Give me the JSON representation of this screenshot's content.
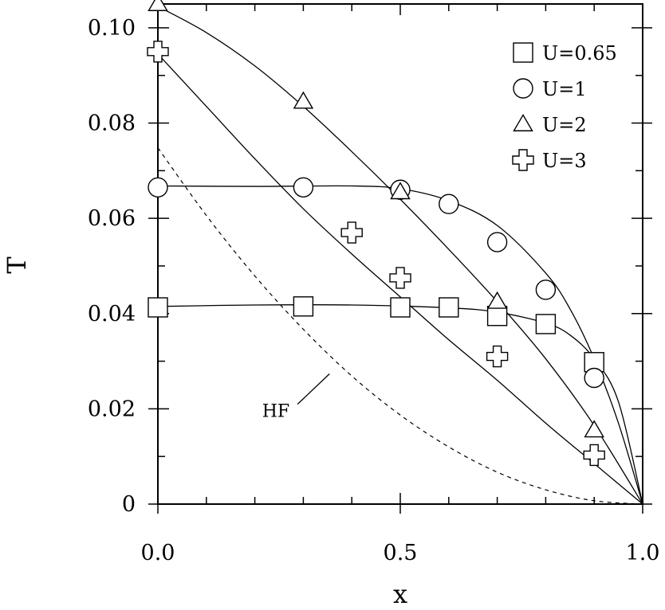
{
  "chart_data": {
    "type": "scatter",
    "title": "",
    "xlabel": "x",
    "ylabel": "T",
    "xlim": [
      0,
      1
    ],
    "ylim": [
      0,
      0.105
    ],
    "x_ticks": [
      "0.0",
      "0.5",
      "1.0"
    ],
    "y_ticks": [
      "0",
      "0.02",
      "0.04",
      "0.06",
      "0.08",
      "0.10"
    ],
    "legend_position": "top-right",
    "grid": false,
    "series": [
      {
        "name": "U=0.65",
        "marker": "square",
        "points": [
          [
            0.0,
            0.0413
          ],
          [
            0.3,
            0.0415
          ],
          [
            0.5,
            0.0413
          ],
          [
            0.6,
            0.0413
          ],
          [
            0.7,
            0.0395
          ],
          [
            0.8,
            0.0378
          ],
          [
            0.9,
            0.0298
          ]
        ],
        "curve": [
          [
            0.0,
            0.0415
          ],
          [
            0.2,
            0.0418
          ],
          [
            0.4,
            0.0418
          ],
          [
            0.6,
            0.0412
          ],
          [
            0.7,
            0.0403
          ],
          [
            0.8,
            0.038
          ],
          [
            0.85,
            0.0355
          ],
          [
            0.9,
            0.0305
          ],
          [
            0.95,
            0.0215
          ],
          [
            1.0,
            0.0
          ]
        ]
      },
      {
        "name": "U=1",
        "marker": "circle",
        "points": [
          [
            0.0,
            0.0665
          ],
          [
            0.3,
            0.0665
          ],
          [
            0.5,
            0.066
          ],
          [
            0.6,
            0.063
          ],
          [
            0.7,
            0.055
          ],
          [
            0.8,
            0.045
          ],
          [
            0.9,
            0.0265
          ]
        ],
        "curve": [
          [
            0.0,
            0.0668
          ],
          [
            0.2,
            0.0667
          ],
          [
            0.4,
            0.0668
          ],
          [
            0.5,
            0.0662
          ],
          [
            0.6,
            0.0637
          ],
          [
            0.7,
            0.0585
          ],
          [
            0.8,
            0.0485
          ],
          [
            0.85,
            0.041
          ],
          [
            0.9,
            0.0305
          ],
          [
            0.95,
            0.017
          ],
          [
            1.0,
            0.0
          ]
        ]
      },
      {
        "name": "U=2",
        "marker": "triangle",
        "points": [
          [
            0.0,
            0.105
          ],
          [
            0.3,
            0.0845
          ],
          [
            0.5,
            0.0655
          ],
          [
            0.7,
            0.0425
          ],
          [
            0.9,
            0.0155
          ]
        ],
        "curve": [
          [
            0.0,
            0.1045
          ],
          [
            0.1,
            0.099
          ],
          [
            0.2,
            0.092
          ],
          [
            0.3,
            0.0835
          ],
          [
            0.4,
            0.074
          ],
          [
            0.5,
            0.064
          ],
          [
            0.6,
            0.0535
          ],
          [
            0.7,
            0.0425
          ],
          [
            0.8,
            0.0305
          ],
          [
            0.9,
            0.0165
          ],
          [
            1.0,
            0.0
          ]
        ]
      },
      {
        "name": "U=3",
        "marker": "plus",
        "points": [
          [
            0.0,
            0.095
          ],
          [
            0.4,
            0.057
          ],
          [
            0.5,
            0.0475
          ],
          [
            0.7,
            0.031
          ],
          [
            0.9,
            0.0103
          ]
        ],
        "curve": [
          [
            0.0,
            0.0945
          ],
          [
            0.1,
            0.0835
          ],
          [
            0.2,
            0.0725
          ],
          [
            0.3,
            0.062
          ],
          [
            0.4,
            0.0525
          ],
          [
            0.5,
            0.0435
          ],
          [
            0.6,
            0.0345
          ],
          [
            0.7,
            0.026
          ],
          [
            0.8,
            0.017
          ],
          [
            0.9,
            0.0085
          ],
          [
            1.0,
            0.0
          ]
        ]
      }
    ],
    "reference_curve": {
      "label": "HF",
      "style": "dashed",
      "points": [
        [
          0.0,
          0.0748
        ],
        [
          0.1,
          0.0606
        ],
        [
          0.2,
          0.0479
        ],
        [
          0.3,
          0.0367
        ],
        [
          0.4,
          0.0269
        ],
        [
          0.5,
          0.0187
        ],
        [
          0.6,
          0.012
        ],
        [
          0.7,
          0.0067
        ],
        [
          0.8,
          0.003
        ],
        [
          0.9,
          0.0007
        ],
        [
          1.0,
          0.0
        ]
      ],
      "label_anchor": [
        0.4,
        0.028
      ]
    }
  }
}
